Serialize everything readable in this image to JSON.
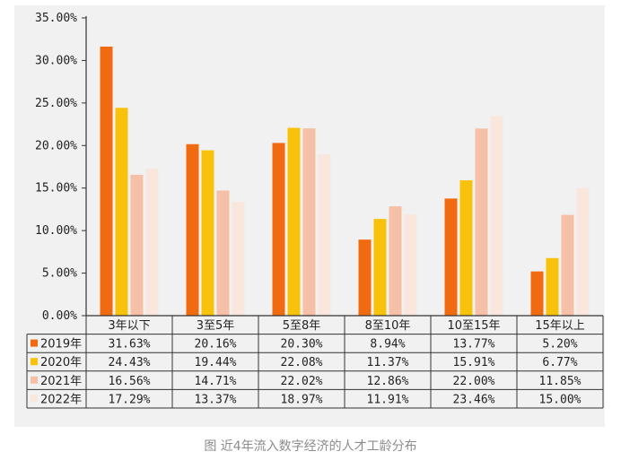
{
  "chart_data": {
    "type": "bar",
    "categories": [
      "3年以下",
      "3至5年",
      "5至8年",
      "8至10年",
      "10至15年",
      "15年以上"
    ],
    "series": [
      {
        "name": "2019年",
        "color": "#f26a0f",
        "values": [
          31.63,
          20.16,
          20.3,
          8.94,
          13.77,
          5.2
        ]
      },
      {
        "name": "2020年",
        "color": "#f8c10c",
        "values": [
          24.43,
          19.44,
          22.08,
          11.37,
          15.91,
          6.77
        ]
      },
      {
        "name": "2021年",
        "color": "#f4c1a6",
        "values": [
          16.56,
          14.71,
          22.02,
          12.86,
          22.0,
          11.85
        ]
      },
      {
        "name": "2022年",
        "color": "#f9e6dc",
        "values": [
          17.29,
          13.37,
          18.97,
          11.91,
          23.46,
          15.0
        ]
      }
    ],
    "table": [
      [
        "31.63%",
        "20.16%",
        "20.30%",
        "8.94%",
        "13.77%",
        "5.20%"
      ],
      [
        "24.43%",
        "19.44%",
        "22.08%",
        "11.37%",
        "15.91%",
        "6.77%"
      ],
      [
        "16.56%",
        "14.71%",
        "22.02%",
        "12.86%",
        "22.00%",
        "11.85%"
      ],
      [
        "17.29%",
        "13.37%",
        "18.97%",
        "11.91%",
        "23.46%",
        "15.00%"
      ]
    ],
    "yticks": [
      "0.00%",
      "5.00%",
      "10.00%",
      "15.00%",
      "20.00%",
      "25.00%",
      "30.00%",
      "35.00%"
    ],
    "ylim": [
      0,
      35
    ],
    "ylabel": "",
    "xlabel": "",
    "title": ""
  },
  "caption": "图 近4年流入数字经济的人才工龄分布"
}
